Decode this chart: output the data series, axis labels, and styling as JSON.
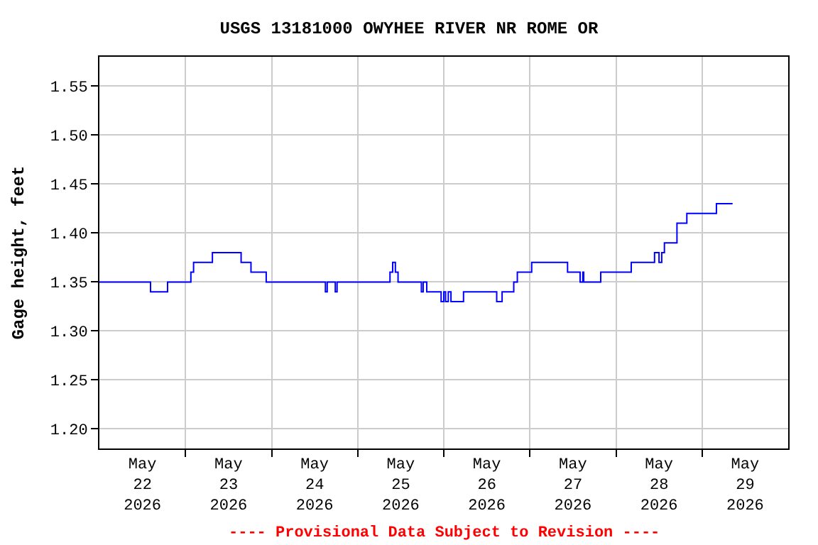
{
  "chart_data": {
    "type": "step",
    "title": "USGS 13181000 OWYHEE RIVER NR ROME OR",
    "ylabel": "Gage height, feet",
    "annotations": [
      "---- Provisional Data Subject to Revision ----"
    ],
    "x": [
      "2026-05-22T00:00",
      "2026-05-22T14:15",
      "2026-05-22T19:00",
      "2026-05-23T01:30",
      "2026-05-23T02:15",
      "2026-05-23T07:30",
      "2026-05-23T15:30",
      "2026-05-23T18:15",
      "2026-05-23T22:30",
      "2026-05-24T15:00",
      "2026-05-24T15:30",
      "2026-05-24T17:45",
      "2026-05-24T18:15",
      "2026-05-25T09:00",
      "2026-05-25T09:45",
      "2026-05-25T10:30",
      "2026-05-25T11:15",
      "2026-05-25T17:45",
      "2026-05-25T18:15",
      "2026-05-25T19:15",
      "2026-05-25T23:15",
      "2026-05-26T00:00",
      "2026-05-26T00:30",
      "2026-05-26T01:15",
      "2026-05-26T02:00",
      "2026-05-26T05:30",
      "2026-05-26T14:45",
      "2026-05-26T16:15",
      "2026-05-26T19:30",
      "2026-05-26T20:30",
      "2026-05-27T00:30",
      "2026-05-27T10:30",
      "2026-05-27T14:00",
      "2026-05-27T14:45",
      "2026-05-27T15:00",
      "2026-05-27T19:45",
      "2026-05-28T04:15",
      "2026-05-28T10:45",
      "2026-05-28T12:00",
      "2026-05-28T12:45",
      "2026-05-28T13:30",
      "2026-05-28T17:00",
      "2026-05-28T19:45",
      "2026-05-29T04:00",
      "2026-05-29T08:30"
    ],
    "series": [
      {
        "color": "#0000ff",
        "values": [
          1.35,
          1.34,
          1.35,
          1.36,
          1.37,
          1.38,
          1.37,
          1.36,
          1.35,
          1.34,
          1.35,
          1.34,
          1.35,
          1.36,
          1.37,
          1.36,
          1.35,
          1.34,
          1.35,
          1.34,
          1.33,
          1.34,
          1.33,
          1.34,
          1.33,
          1.34,
          1.33,
          1.34,
          1.35,
          1.36,
          1.37,
          1.36,
          1.35,
          1.36,
          1.35,
          1.36,
          1.37,
          1.38,
          1.37,
          1.38,
          1.39,
          1.41,
          1.42,
          1.43,
          1.43
        ]
      }
    ],
    "xlim": [
      "2026-05-22T00:00",
      "2026-05-30T00:00"
    ],
    "xticks": [
      {
        "value": "2026-05-22T12:00",
        "label": "May\n22\n2026"
      },
      {
        "value": "2026-05-23T12:00",
        "label": "May\n23\n2026"
      },
      {
        "value": "2026-05-24T12:00",
        "label": "May\n24\n2026"
      },
      {
        "value": "2026-05-25T12:00",
        "label": "May\n25\n2026"
      },
      {
        "value": "2026-05-26T12:00",
        "label": "May\n26\n2026"
      },
      {
        "value": "2026-05-27T12:00",
        "label": "May\n27\n2026"
      },
      {
        "value": "2026-05-28T12:00",
        "label": "May\n28\n2026"
      },
      {
        "value": "2026-05-29T12:00",
        "label": "May\n29\n2026"
      },
      {
        "value": "2026-05-23T00:00",
        "label": null
      },
      {
        "value": "2026-05-24T00:00",
        "label": null
      },
      {
        "value": "2026-05-25T00:00",
        "label": null
      },
      {
        "value": "2026-05-26T00:00",
        "label": null
      },
      {
        "value": "2026-05-27T00:00",
        "label": null
      },
      {
        "value": "2026-05-28T00:00",
        "label": null
      },
      {
        "value": "2026-05-29T00:00",
        "label": null
      }
    ],
    "ylim": [
      1.18,
      1.58
    ],
    "yticks": [
      {
        "value": 1.2,
        "label": "1.20"
      },
      {
        "value": 1.25,
        "label": "1.25"
      },
      {
        "value": 1.3,
        "label": "1.30"
      },
      {
        "value": 1.35,
        "label": "1.35"
      },
      {
        "value": 1.4,
        "label": "1.40"
      },
      {
        "value": 1.45,
        "label": "1.45"
      },
      {
        "value": 1.5,
        "label": "1.50"
      },
      {
        "value": 1.55,
        "label": "1.55"
      }
    ],
    "grid": true
  }
}
